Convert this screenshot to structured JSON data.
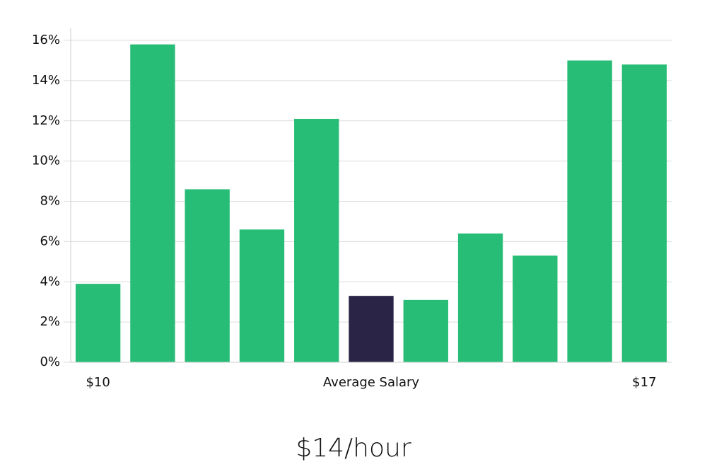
{
  "chart_data": {
    "type": "bar",
    "categories": [
      "$10",
      null,
      null,
      null,
      null,
      "Average Salary",
      null,
      null,
      null,
      null,
      "$17"
    ],
    "values": [
      3.9,
      15.8,
      8.6,
      6.6,
      12.1,
      3.3,
      3.1,
      6.4,
      5.3,
      15.0,
      14.8
    ],
    "colors": [
      "#28bd76",
      "#28bd76",
      "#28bd76",
      "#28bd76",
      "#28bd76",
      "#2a2446",
      "#28bd76",
      "#28bd76",
      "#28bd76",
      "#28bd76",
      "#28bd76"
    ],
    "ylim": [
      0,
      16.6
    ],
    "yticks": [
      {
        "value": 0,
        "label": "0%"
      },
      {
        "value": 2,
        "label": "2%"
      },
      {
        "value": 4,
        "label": "4%"
      },
      {
        "value": 6,
        "label": "6%"
      },
      {
        "value": 8,
        "label": "8%"
      },
      {
        "value": 10,
        "label": "10%"
      },
      {
        "value": 12,
        "label": "12%"
      },
      {
        "value": 14,
        "label": "14%"
      },
      {
        "value": 16,
        "label": "16%"
      }
    ],
    "grid": true,
    "annotation": "$14/hour"
  }
}
